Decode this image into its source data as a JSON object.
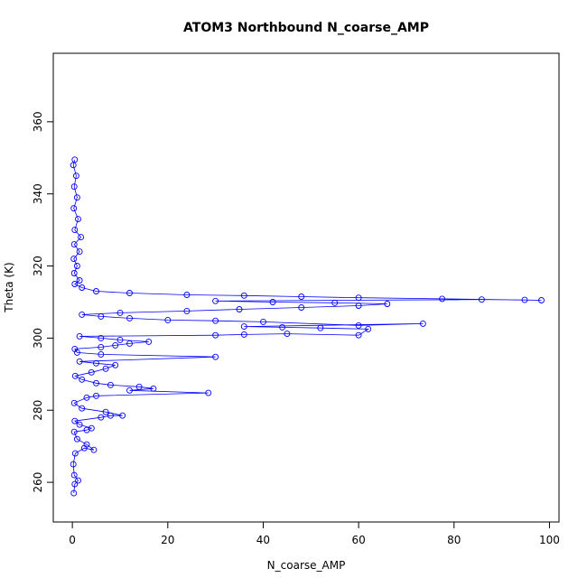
{
  "chart_data": {
    "type": "scatter",
    "title": "ATOM3 Northbound N_coarse_AMP",
    "xlabel": "N_coarse_AMP",
    "ylabel": "Theta (K)",
    "xlim": [
      -4,
      102
    ],
    "ylim": [
      249,
      379
    ],
    "xticks": [
      0,
      20,
      40,
      60,
      80,
      100
    ],
    "yticks": [
      260,
      280,
      300,
      320,
      340,
      360
    ],
    "grid": false,
    "legend": "none",
    "marker": "open-circle",
    "connected": true,
    "color": "#0000ff",
    "series": [
      {
        "points": [
          [
            0.3,
            257.0
          ],
          [
            0.5,
            259.5
          ],
          [
            1.2,
            260.5
          ],
          [
            0.4,
            262.0
          ],
          [
            0.2,
            265.0
          ],
          [
            0.6,
            268.0
          ],
          [
            2.5,
            269.5
          ],
          [
            4.5,
            269.0
          ],
          [
            3.0,
            270.5
          ],
          [
            1.0,
            272.0
          ],
          [
            0.4,
            274.0
          ],
          [
            3.0,
            274.5
          ],
          [
            4.0,
            275.0
          ],
          [
            1.5,
            276.0
          ],
          [
            0.5,
            277.0
          ],
          [
            6.0,
            278.0
          ],
          [
            8.0,
            278.5
          ],
          [
            10.5,
            278.5
          ],
          [
            7.0,
            279.5
          ],
          [
            2.0,
            280.5
          ],
          [
            0.4,
            282.0
          ],
          [
            3.0,
            283.5
          ],
          [
            5.0,
            284.0
          ],
          [
            28.5,
            284.8
          ],
          [
            12.0,
            285.5
          ],
          [
            17.0,
            286.0
          ],
          [
            14.0,
            286.5
          ],
          [
            8.0,
            287.0
          ],
          [
            5.0,
            287.5
          ],
          [
            2.0,
            288.5
          ],
          [
            0.6,
            289.5
          ],
          [
            4.0,
            290.5
          ],
          [
            7.0,
            291.5
          ],
          [
            9.0,
            292.5
          ],
          [
            5.0,
            293.0
          ],
          [
            1.5,
            293.5
          ],
          [
            30.0,
            294.8
          ],
          [
            6.0,
            295.5
          ],
          [
            1.0,
            296.0
          ],
          [
            0.5,
            297.0
          ],
          [
            6.0,
            297.5
          ],
          [
            9.0,
            298.0
          ],
          [
            12.0,
            298.5
          ],
          [
            16.0,
            299.0
          ],
          [
            10.0,
            299.5
          ],
          [
            6.0,
            300.0
          ],
          [
            1.5,
            300.5
          ],
          [
            30.0,
            300.8
          ],
          [
            36.0,
            301.0
          ],
          [
            45.0,
            301.2
          ],
          [
            60.0,
            300.8
          ],
          [
            62.0,
            302.5
          ],
          [
            52.0,
            302.8
          ],
          [
            44.0,
            303.0
          ],
          [
            36.0,
            303.2
          ],
          [
            73.5,
            304.0
          ],
          [
            60.0,
            303.5
          ],
          [
            40.0,
            304.5
          ],
          [
            30.0,
            304.8
          ],
          [
            20.0,
            305.0
          ],
          [
            12.0,
            305.5
          ],
          [
            6.0,
            306.0
          ],
          [
            2.0,
            306.5
          ],
          [
            10.0,
            307.0
          ],
          [
            24.0,
            307.5
          ],
          [
            35.0,
            308.0
          ],
          [
            48.0,
            308.5
          ],
          [
            60.0,
            309.0
          ],
          [
            66.0,
            309.5
          ],
          [
            55.0,
            309.8
          ],
          [
            42.0,
            310.0
          ],
          [
            30.0,
            310.3
          ],
          [
            85.8,
            310.7
          ],
          [
            94.8,
            310.6
          ],
          [
            98.3,
            310.5
          ],
          [
            77.5,
            310.9
          ],
          [
            60.0,
            311.2
          ],
          [
            48.0,
            311.5
          ],
          [
            36.0,
            311.8
          ],
          [
            24.0,
            312.0
          ],
          [
            12.0,
            312.5
          ],
          [
            5.0,
            313.0
          ],
          [
            2.0,
            314.0
          ],
          [
            0.5,
            315.0
          ],
          [
            1.5,
            316.0
          ],
          [
            0.4,
            318.0
          ],
          [
            1.0,
            320.0
          ],
          [
            0.3,
            322.0
          ],
          [
            1.5,
            324.0
          ],
          [
            0.4,
            326.0
          ],
          [
            1.8,
            328.0
          ],
          [
            0.5,
            330.0
          ],
          [
            1.2,
            333.0
          ],
          [
            0.3,
            336.0
          ],
          [
            1.0,
            339.0
          ],
          [
            0.4,
            342.0
          ],
          [
            0.8,
            345.0
          ],
          [
            0.2,
            348.0
          ],
          [
            0.5,
            349.5
          ]
        ]
      }
    ]
  }
}
